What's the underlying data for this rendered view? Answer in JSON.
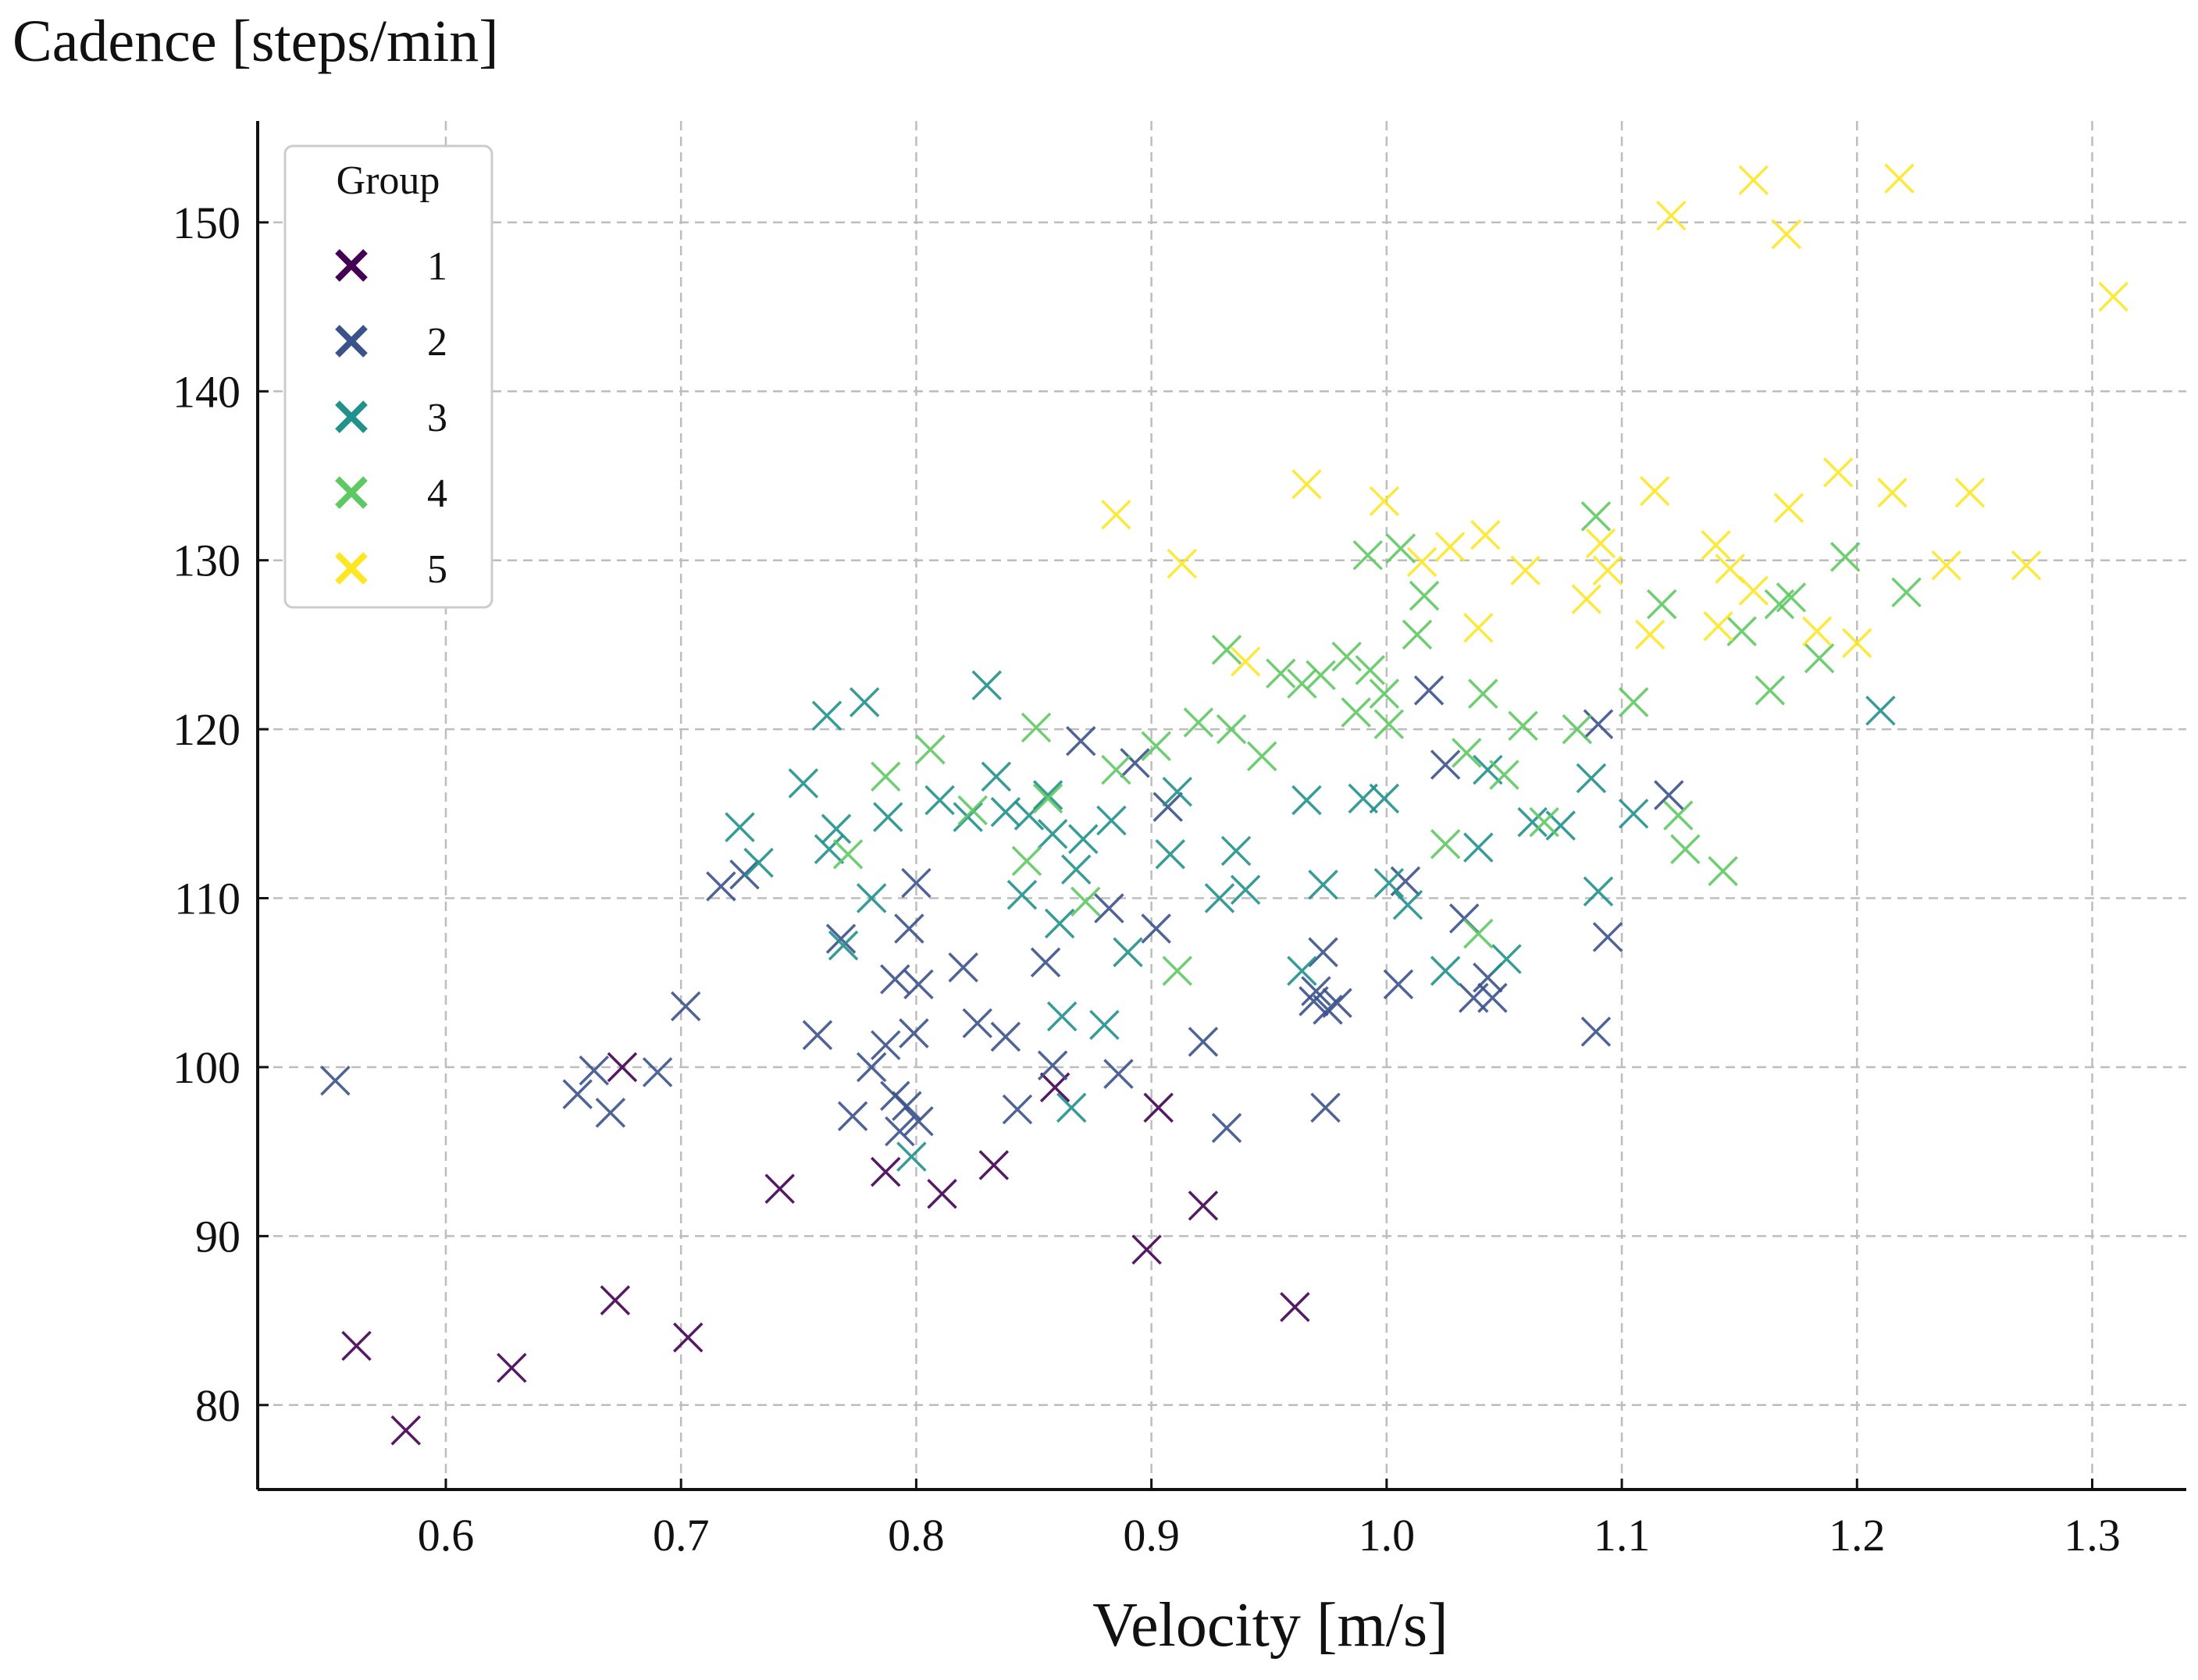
{
  "chart_data": {
    "type": "scatter",
    "title": "",
    "xlabel": "Velocity [m/s]",
    "ylabel": "Cadence [steps/min]",
    "xlim": [
      0.52,
      1.34
    ],
    "ylim": [
      75,
      156
    ],
    "xticks": [
      0.6,
      0.7,
      0.8,
      0.9,
      1.0,
      1.1,
      1.2,
      1.3
    ],
    "xtick_labels": [
      "0.6",
      "0.7",
      "0.8",
      "0.9",
      "1.0",
      "1.1",
      "1.2",
      "1.3"
    ],
    "yticks": [
      80,
      90,
      100,
      110,
      120,
      130,
      140,
      150
    ],
    "ytick_labels": [
      "80",
      "90",
      "100",
      "110",
      "120",
      "130",
      "140",
      "150"
    ],
    "grid": true,
    "marker": "x",
    "legend": {
      "title": "Group",
      "placement": "top-left",
      "entries": [
        {
          "label": "1",
          "color": "#440154"
        },
        {
          "label": "2",
          "color": "#3b528b"
        },
        {
          "label": "3",
          "color": "#21918c"
        },
        {
          "label": "4",
          "color": "#5ec962"
        },
        {
          "label": "5",
          "color": "#fde725"
        }
      ]
    },
    "series": [
      {
        "name": "1",
        "color": "#440154",
        "points": [
          [
            0.562,
            83.5
          ],
          [
            0.583,
            78.5
          ],
          [
            0.628,
            82.2
          ],
          [
            0.672,
            86.2
          ],
          [
            0.675,
            100.0
          ],
          [
            0.703,
            84.0
          ],
          [
            0.742,
            92.8
          ],
          [
            0.787,
            93.8
          ],
          [
            0.811,
            92.5
          ],
          [
            0.833,
            94.2
          ],
          [
            0.859,
            98.8
          ],
          [
            0.898,
            89.2
          ],
          [
            0.903,
            97.6
          ],
          [
            0.922,
            91.8
          ],
          [
            0.961,
            85.8
          ]
        ]
      },
      {
        "name": "2",
        "color": "#3b528b",
        "points": [
          [
            0.553,
            99.2
          ],
          [
            0.656,
            98.4
          ],
          [
            0.663,
            99.8
          ],
          [
            0.67,
            97.3
          ],
          [
            0.69,
            99.7
          ],
          [
            0.702,
            103.6
          ],
          [
            0.717,
            110.7
          ],
          [
            0.727,
            111.4
          ],
          [
            0.758,
            101.9
          ],
          [
            0.768,
            107.6
          ],
          [
            0.773,
            97.1
          ],
          [
            0.781,
            100.0
          ],
          [
            0.787,
            101.3
          ],
          [
            0.791,
            105.2
          ],
          [
            0.791,
            98.3
          ],
          [
            0.793,
            96.2
          ],
          [
            0.796,
            97.7
          ],
          [
            0.797,
            108.2
          ],
          [
            0.799,
            102.0
          ],
          [
            0.8,
            110.9
          ],
          [
            0.801,
            104.9
          ],
          [
            0.801,
            96.8
          ],
          [
            0.82,
            105.9
          ],
          [
            0.826,
            102.6
          ],
          [
            0.838,
            101.8
          ],
          [
            0.843,
            97.5
          ],
          [
            0.855,
            106.2
          ],
          [
            0.858,
            100.1
          ],
          [
            0.87,
            119.3
          ],
          [
            0.882,
            109.4
          ],
          [
            0.886,
            99.6
          ],
          [
            0.893,
            118.0
          ],
          [
            0.902,
            108.2
          ],
          [
            0.907,
            115.4
          ],
          [
            0.922,
            101.5
          ],
          [
            0.932,
            96.4
          ],
          [
            0.969,
            103.9
          ],
          [
            0.97,
            104.5
          ],
          [
            0.973,
            106.8
          ],
          [
            0.974,
            97.6
          ],
          [
            0.975,
            103.4
          ],
          [
            0.979,
            103.8
          ],
          [
            1.005,
            104.9
          ],
          [
            1.008,
            111.0
          ],
          [
            1.018,
            122.3
          ],
          [
            1.025,
            117.9
          ],
          [
            1.033,
            108.8
          ],
          [
            1.037,
            104.1
          ],
          [
            1.043,
            105.3
          ],
          [
            1.045,
            104.1
          ],
          [
            1.089,
            102.1
          ],
          [
            1.09,
            120.3
          ],
          [
            1.094,
            107.7
          ],
          [
            1.12,
            116.1
          ]
        ]
      },
      {
        "name": "3",
        "color": "#21918c",
        "points": [
          [
            0.725,
            114.2
          ],
          [
            0.733,
            112.1
          ],
          [
            0.752,
            116.8
          ],
          [
            0.762,
            120.8
          ],
          [
            0.763,
            112.9
          ],
          [
            0.766,
            114.1
          ],
          [
            0.769,
            107.2
          ],
          [
            0.778,
            121.6
          ],
          [
            0.781,
            110.0
          ],
          [
            0.788,
            114.8
          ],
          [
            0.798,
            94.7
          ],
          [
            0.81,
            115.8
          ],
          [
            0.822,
            114.8
          ],
          [
            0.83,
            122.6
          ],
          [
            0.834,
            117.2
          ],
          [
            0.838,
            115.1
          ],
          [
            0.845,
            110.2
          ],
          [
            0.848,
            114.9
          ],
          [
            0.856,
            116.1
          ],
          [
            0.858,
            113.8
          ],
          [
            0.861,
            108.5
          ],
          [
            0.862,
            103.0
          ],
          [
            0.866,
            97.6
          ],
          [
            0.868,
            111.7
          ],
          [
            0.871,
            113.5
          ],
          [
            0.88,
            102.5
          ],
          [
            0.883,
            114.6
          ],
          [
            0.89,
            106.8
          ],
          [
            0.908,
            112.6
          ],
          [
            0.911,
            116.3
          ],
          [
            0.929,
            110.0
          ],
          [
            0.936,
            112.8
          ],
          [
            0.94,
            110.5
          ],
          [
            0.964,
            105.7
          ],
          [
            0.966,
            115.8
          ],
          [
            0.973,
            110.8
          ],
          [
            0.99,
            115.9
          ],
          [
            0.999,
            115.9
          ],
          [
            1.001,
            110.9
          ],
          [
            1.009,
            109.6
          ],
          [
            1.025,
            105.7
          ],
          [
            1.039,
            113.0
          ],
          [
            1.043,
            117.6
          ],
          [
            1.051,
            106.4
          ],
          [
            1.062,
            114.5
          ],
          [
            1.074,
            114.3
          ],
          [
            1.087,
            117.1
          ],
          [
            1.09,
            110.4
          ],
          [
            1.105,
            115.0
          ],
          [
            1.21,
            121.1
          ]
        ]
      },
      {
        "name": "4",
        "color": "#5ec962",
        "points": [
          [
            0.771,
            112.6
          ],
          [
            0.787,
            117.2
          ],
          [
            0.806,
            118.8
          ],
          [
            0.824,
            115.2
          ],
          [
            0.847,
            112.2
          ],
          [
            0.851,
            120.1
          ],
          [
            0.856,
            115.9
          ],
          [
            0.872,
            109.8
          ],
          [
            0.885,
            117.6
          ],
          [
            0.902,
            119.0
          ],
          [
            0.911,
            105.7
          ],
          [
            0.92,
            120.4
          ],
          [
            0.932,
            124.7
          ],
          [
            0.934,
            120.0
          ],
          [
            0.947,
            118.4
          ],
          [
            0.955,
            123.3
          ],
          [
            0.964,
            122.7
          ],
          [
            0.972,
            123.2
          ],
          [
            0.983,
            124.3
          ],
          [
            0.987,
            121.0
          ],
          [
            0.992,
            130.3
          ],
          [
            0.993,
            123.5
          ],
          [
            0.999,
            122.1
          ],
          [
            1.001,
            120.3
          ],
          [
            1.006,
            130.7
          ],
          [
            1.013,
            125.6
          ],
          [
            1.016,
            127.9
          ],
          [
            1.025,
            113.2
          ],
          [
            1.034,
            118.6
          ],
          [
            1.039,
            107.9
          ],
          [
            1.041,
            122.1
          ],
          [
            1.05,
            117.3
          ],
          [
            1.058,
            120.2
          ],
          [
            1.067,
            114.5
          ],
          [
            1.081,
            120.0
          ],
          [
            1.089,
            132.6
          ],
          [
            1.105,
            121.6
          ],
          [
            1.117,
            127.4
          ],
          [
            1.124,
            114.9
          ],
          [
            1.127,
            112.9
          ],
          [
            1.143,
            111.6
          ],
          [
            1.151,
            125.8
          ],
          [
            1.163,
            122.3
          ],
          [
            1.167,
            127.4
          ],
          [
            1.172,
            127.8
          ],
          [
            1.184,
            124.2
          ],
          [
            1.195,
            130.2
          ],
          [
            1.221,
            128.1
          ]
        ]
      },
      {
        "name": "5",
        "color": "#fde725",
        "points": [
          [
            0.885,
            132.7
          ],
          [
            0.913,
            129.8
          ],
          [
            0.94,
            124.0
          ],
          [
            0.966,
            134.5
          ],
          [
            0.999,
            133.5
          ],
          [
            1.015,
            129.9
          ],
          [
            1.027,
            130.8
          ],
          [
            1.039,
            126.0
          ],
          [
            1.042,
            131.5
          ],
          [
            1.059,
            129.4
          ],
          [
            1.085,
            127.7
          ],
          [
            1.091,
            131.0
          ],
          [
            1.094,
            129.4
          ],
          [
            1.112,
            125.6
          ],
          [
            1.114,
            134.1
          ],
          [
            1.121,
            150.4
          ],
          [
            1.14,
            130.9
          ],
          [
            1.141,
            126.1
          ],
          [
            1.146,
            129.5
          ],
          [
            1.156,
            128.2
          ],
          [
            1.156,
            152.5
          ],
          [
            1.17,
            149.3
          ],
          [
            1.171,
            133.1
          ],
          [
            1.183,
            125.8
          ],
          [
            1.192,
            135.2
          ],
          [
            1.2,
            125.1
          ],
          [
            1.215,
            134.0
          ],
          [
            1.218,
            152.6
          ],
          [
            1.238,
            129.7
          ],
          [
            1.248,
            134.0
          ],
          [
            1.272,
            129.7
          ],
          [
            1.309,
            145.6
          ]
        ]
      }
    ]
  }
}
